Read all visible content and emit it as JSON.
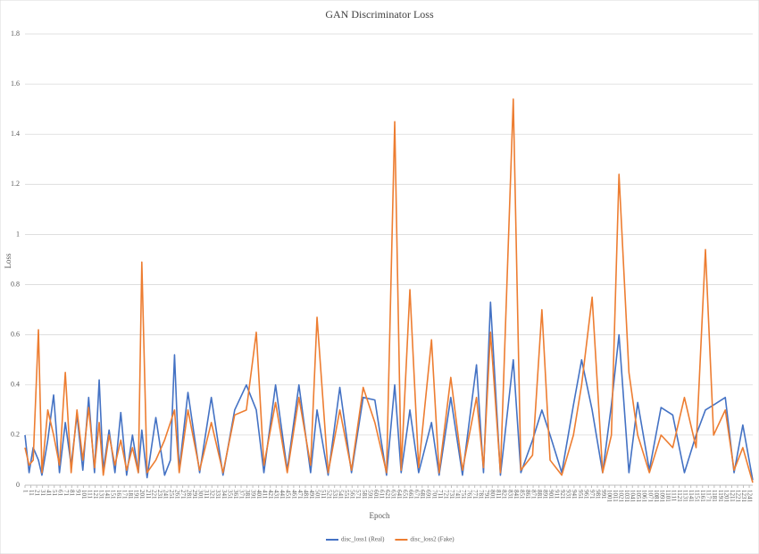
{
  "chart_data": {
    "type": "line",
    "title": "GAN Discriminator  Loss",
    "x_label": "Epoch",
    "y_label": "Loss",
    "x": [
      1,
      8,
      15,
      24,
      30,
      40,
      50,
      60,
      70,
      80,
      90,
      100,
      110,
      120,
      128,
      135,
      145,
      155,
      165,
      175,
      185,
      195,
      201,
      210,
      225,
      240,
      250,
      257,
      265,
      280,
      300,
      320,
      340,
      360,
      380,
      397,
      410,
      430,
      450,
      470,
      490,
      501,
      520,
      540,
      560,
      580,
      600,
      620,
      634,
      645,
      660,
      675,
      697,
      710,
      730,
      750,
      774,
      786,
      798,
      815,
      837,
      850,
      870,
      886,
      900,
      920,
      940,
      954,
      972,
      990,
      1005,
      1018,
      1035,
      1050,
      1070,
      1090,
      1110,
      1130,
      1150,
      1166,
      1180,
      1200,
      1215,
      1230,
      1247
    ],
    "series": [
      {
        "name": "disc_loss1 (Real)",
        "color": "#4472c4",
        "values": [
          0.2,
          0.05,
          0.15,
          0.1,
          0.04,
          0.18,
          0.36,
          0.05,
          0.25,
          0.08,
          0.28,
          0.06,
          0.35,
          0.05,
          0.42,
          0.06,
          0.22,
          0.05,
          0.29,
          0.04,
          0.2,
          0.05,
          0.22,
          0.03,
          0.27,
          0.04,
          0.1,
          0.52,
          0.06,
          0.37,
          0.05,
          0.35,
          0.04,
          0.3,
          0.4,
          0.3,
          0.05,
          0.4,
          0.06,
          0.4,
          0.05,
          0.3,
          0.04,
          0.39,
          0.05,
          0.35,
          0.34,
          0.04,
          0.4,
          0.05,
          0.3,
          0.05,
          0.25,
          0.04,
          0.35,
          0.04,
          0.48,
          0.05,
          0.73,
          0.04,
          0.5,
          0.05,
          0.18,
          0.3,
          0.2,
          0.05,
          0.32,
          0.5,
          0.3,
          0.05,
          0.32,
          0.6,
          0.05,
          0.33,
          0.06,
          0.31,
          0.28,
          0.05,
          0.2,
          0.3,
          0.32,
          0.35,
          0.05,
          0.24,
          0.02
        ]
      },
      {
        "name": "disc_loss2 (Fake)",
        "color": "#ed7d31",
        "values": [
          0.15,
          0.08,
          0.1,
          0.62,
          0.05,
          0.3,
          0.2,
          0.08,
          0.45,
          0.05,
          0.3,
          0.1,
          0.31,
          0.07,
          0.25,
          0.04,
          0.2,
          0.08,
          0.18,
          0.06,
          0.15,
          0.05,
          0.89,
          0.05,
          0.1,
          0.18,
          0.25,
          0.3,
          0.05,
          0.3,
          0.06,
          0.25,
          0.05,
          0.28,
          0.3,
          0.61,
          0.08,
          0.33,
          0.05,
          0.35,
          0.08,
          0.67,
          0.05,
          0.3,
          0.06,
          0.39,
          0.25,
          0.05,
          1.45,
          0.06,
          0.78,
          0.07,
          0.58,
          0.05,
          0.43,
          0.06,
          0.35,
          0.07,
          0.61,
          0.05,
          1.54,
          0.06,
          0.12,
          0.7,
          0.1,
          0.04,
          0.2,
          0.4,
          0.75,
          0.05,
          0.2,
          1.24,
          0.45,
          0.2,
          0.05,
          0.2,
          0.15,
          0.35,
          0.15,
          0.94,
          0.2,
          0.3,
          0.06,
          0.15,
          0.01
        ]
      }
    ],
    "xlim": [
      1,
      1247
    ],
    "xticks": [
      1,
      11,
      21,
      31,
      41,
      51,
      61,
      71,
      81,
      91,
      101,
      111,
      121,
      131,
      141,
      151,
      161,
      171,
      181,
      191,
      201,
      211,
      221,
      231,
      241,
      251,
      261,
      271,
      281,
      291,
      301,
      311,
      321,
      331,
      341,
      351,
      361,
      371,
      381,
      391,
      401,
      411,
      421,
      431,
      441,
      451,
      461,
      471,
      481,
      491,
      501,
      511,
      521,
      531,
      541,
      551,
      561,
      571,
      581,
      591,
      601,
      611,
      621,
      631,
      641,
      651,
      661,
      671,
      681,
      691,
      701,
      711,
      721,
      731,
      741,
      751,
      761,
      771,
      781,
      791,
      801,
      811,
      821,
      831,
      841,
      851,
      861,
      871,
      881,
      891,
      901,
      911,
      921,
      931,
      941,
      951,
      961,
      971,
      981,
      991,
      1001,
      1011,
      1021,
      1031,
      1041,
      1051,
      1061,
      1071,
      1081,
      1091,
      1101,
      1111,
      1121,
      1131,
      1141,
      1151,
      1161,
      1171,
      1181,
      1191,
      1201,
      1211,
      1221,
      1231,
      1241
    ],
    "ylim": [
      0,
      1.8
    ],
    "yticks": [
      0,
      0.2,
      0.4,
      0.6,
      0.8,
      1,
      1.2,
      1.4,
      1.6,
      1.8
    ],
    "grid": true,
    "legend": "bottom"
  }
}
